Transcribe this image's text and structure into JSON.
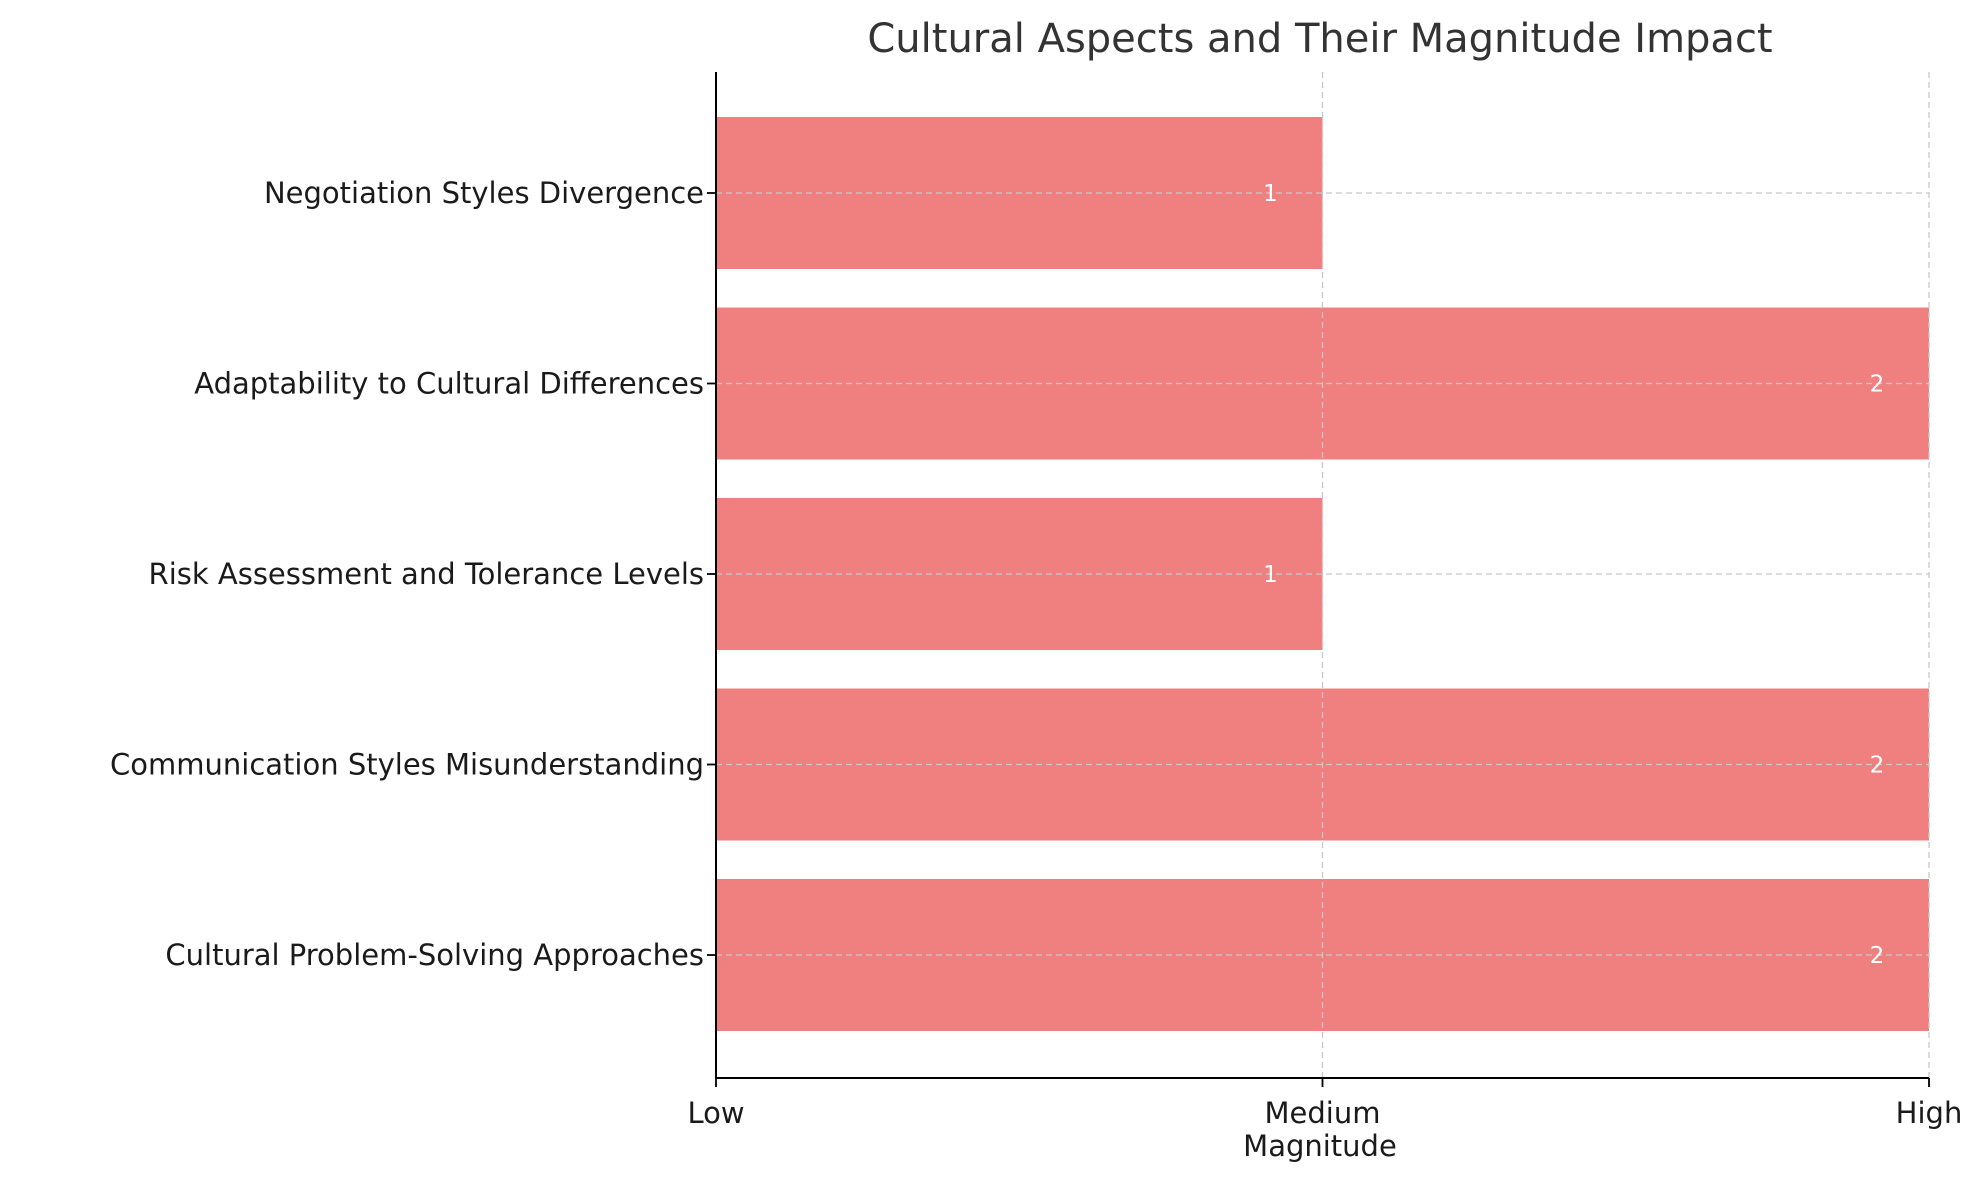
{
  "chart_data": {
    "type": "bar",
    "orientation": "horizontal",
    "title": "Cultural Aspects and Their Magnitude Impact",
    "xlabel": "Magnitude",
    "ylabel": "",
    "categories": [
      "Cultural Problem-Solving Approaches",
      "Communication Styles Misunderstanding",
      "Risk Assessment and Tolerance Levels",
      "Adaptability to Cultural Differences",
      "Negotiation Styles Divergence"
    ],
    "values": [
      2,
      2,
      1,
      2,
      1
    ],
    "data_labels": [
      "2",
      "2",
      "1",
      "2",
      "1"
    ],
    "xlim": [
      0,
      2
    ],
    "xticks": [
      {
        "value": 0,
        "label": "Low"
      },
      {
        "value": 1,
        "label": "Medium"
      },
      {
        "value": 2,
        "label": "High"
      }
    ],
    "grid": true,
    "grid_style": "dashed",
    "colors": {
      "bar": "#f08080",
      "grid": "#c8c8c8",
      "axis": "#000000",
      "title": "#333333",
      "data_label": "#ffffff"
    }
  }
}
